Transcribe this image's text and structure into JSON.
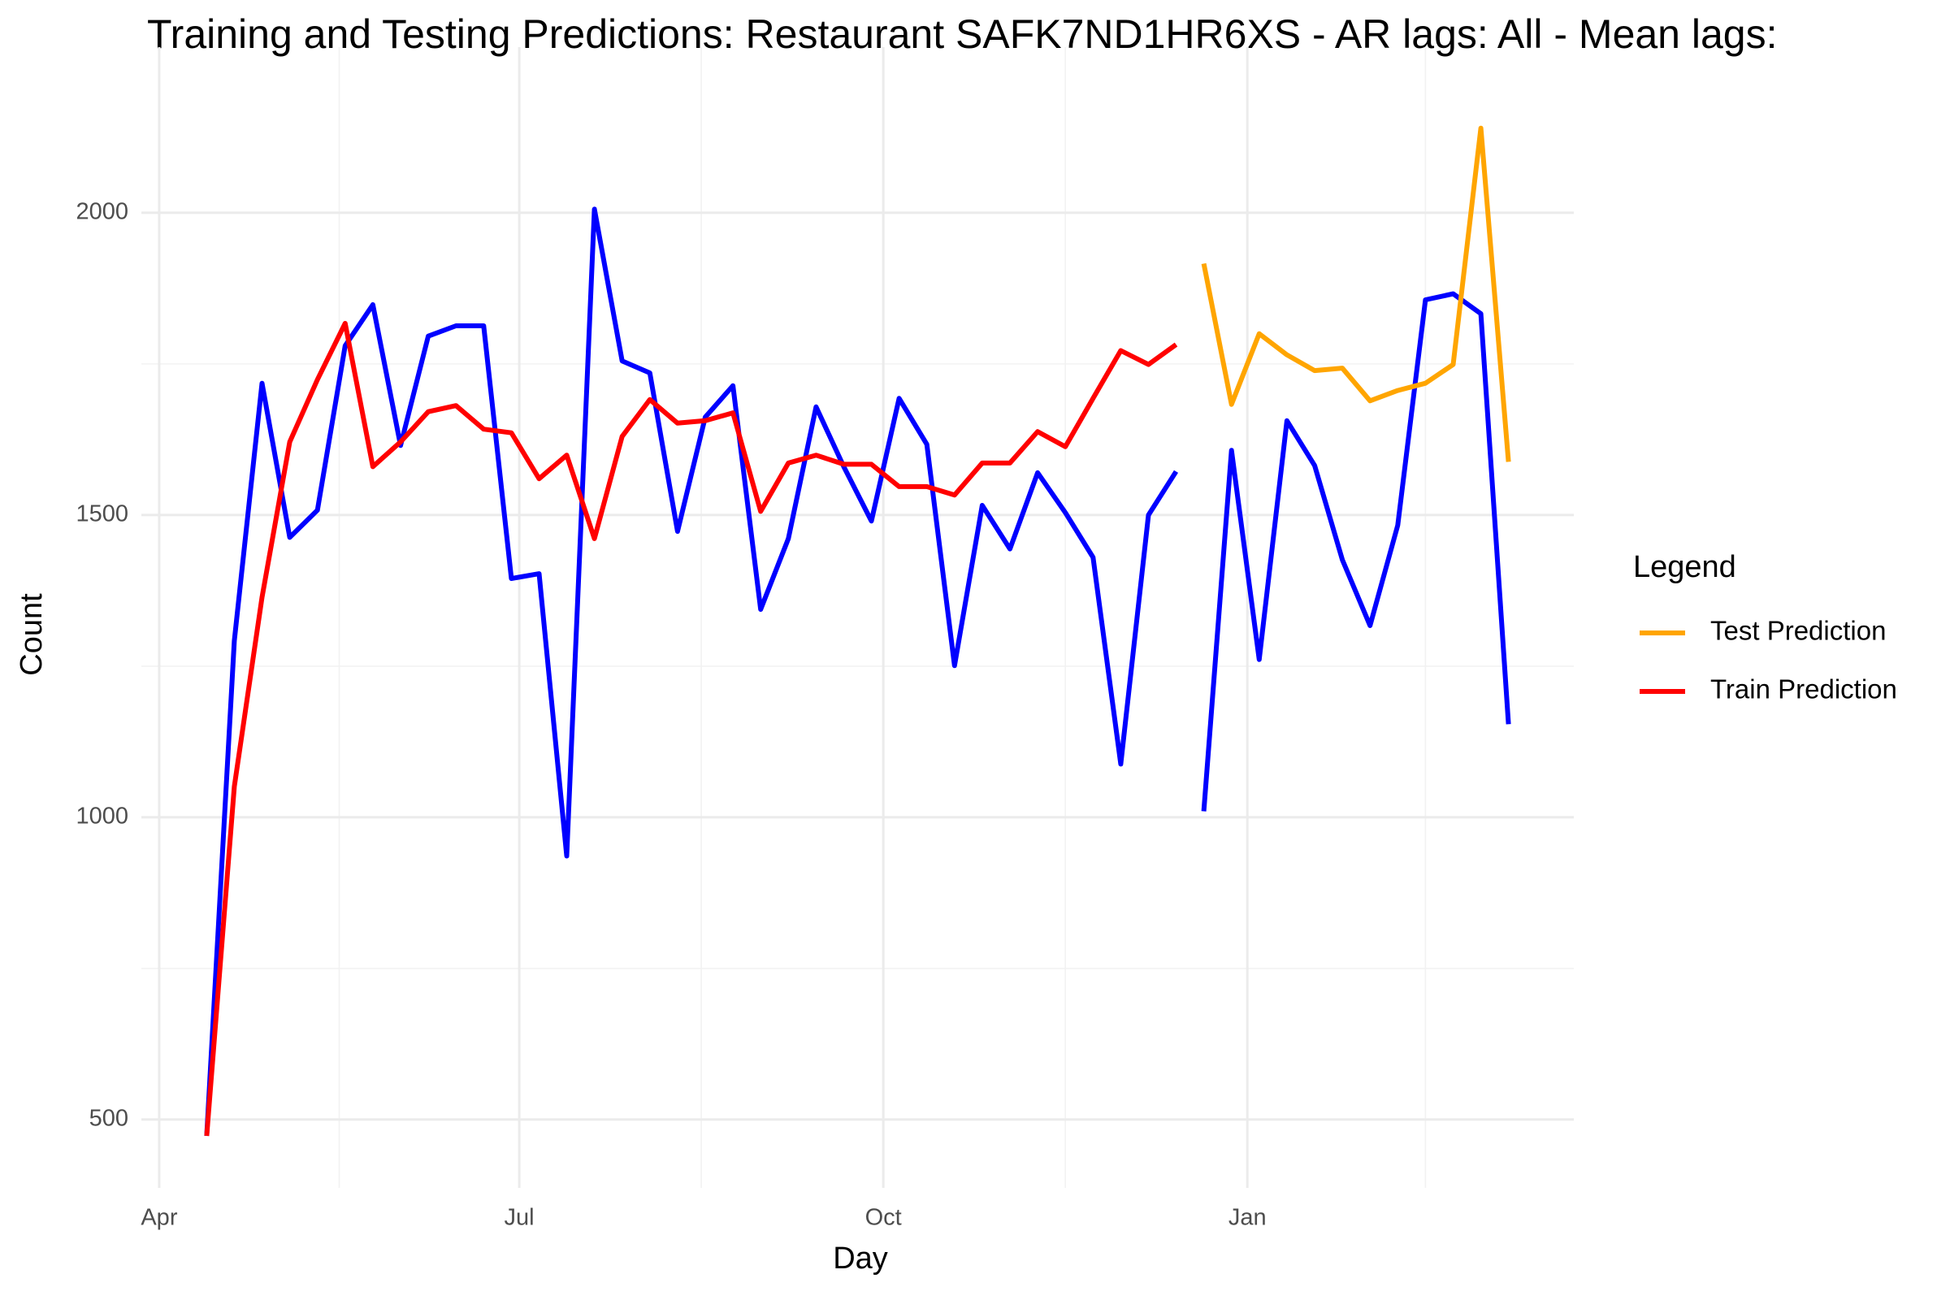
{
  "chart_data": {
    "type": "line",
    "title": "Training and Testing Predictions: Restaurant SAFK7ND1HR6XS - AR lags: All - Mean lags:",
    "xlabel": "Day",
    "ylabel": "Count",
    "legend_title": "Legend",
    "legend_position": "right",
    "grid": true,
    "x": [
      12,
      19,
      26,
      33,
      40,
      47,
      54,
      61,
      68,
      75,
      82,
      89,
      96,
      103,
      110,
      117,
      124,
      131,
      138,
      145,
      152,
      159,
      166,
      173,
      180,
      187,
      194,
      201,
      208,
      215,
      222,
      229,
      236,
      243,
      250,
      257,
      264,
      271,
      278,
      285,
      292,
      299,
      306,
      313,
      320,
      327,
      334,
      341
    ],
    "xlim": [
      -4.5,
      357.5
    ],
    "xticks": [
      {
        "value": 0,
        "label": "Apr"
      },
      {
        "value": 91,
        "label": "Jul"
      },
      {
        "value": 183,
        "label": "Oct"
      },
      {
        "value": 275,
        "label": "Jan"
      }
    ],
    "xticks_minor": [
      45.5,
      137,
      229,
      320
    ],
    "ylim": [
      387,
      2274
    ],
    "yticks": [
      500,
      1000,
      1500,
      2000
    ],
    "yticks_minor": [
      750,
      1250,
      1750
    ],
    "series": [
      {
        "color": "#0000ff",
        "values": [
          473,
          1292,
          1718,
          1463,
          1508,
          1780,
          1848,
          1615,
          1796,
          1813,
          1813,
          1395,
          1403,
          936,
          2006,
          1755,
          1735,
          1473,
          1662,
          1714,
          1344,
          1461,
          1679,
          1580,
          1490,
          1693,
          1617,
          1251,
          1516,
          1444,
          1570,
          1504,
          1430,
          1088,
          1500,
          1572,
          null,
          null,
          null,
          null,
          null,
          null,
          null,
          null,
          null,
          null,
          null,
          null
        ]
      },
      {
        "color": "#0000ff",
        "values": [
          null,
          null,
          null,
          null,
          null,
          null,
          null,
          null,
          null,
          null,
          null,
          null,
          null,
          null,
          null,
          null,
          null,
          null,
          null,
          null,
          null,
          null,
          null,
          null,
          null,
          null,
          null,
          null,
          null,
          null,
          null,
          null,
          null,
          null,
          null,
          null,
          1010,
          1607,
          1261,
          1656,
          1582,
          1426,
          1317,
          1483,
          1856,
          1866,
          1833,
          1154
        ]
      },
      {
        "name": "Test Prediction",
        "color": "#ffa500",
        "values": [
          null,
          null,
          null,
          null,
          null,
          null,
          null,
          null,
          null,
          null,
          null,
          null,
          null,
          null,
          null,
          null,
          null,
          null,
          null,
          null,
          null,
          null,
          null,
          null,
          null,
          null,
          null,
          null,
          null,
          null,
          null,
          null,
          null,
          null,
          null,
          null,
          1916,
          1683,
          1800,
          1765,
          1739,
          1743,
          1689,
          1706,
          1718,
          1749,
          2140,
          1588
        ]
      },
      {
        "name": "Train Prediction",
        "color": "#ff0000",
        "values": [
          473,
          1051,
          1364,
          1621,
          1724,
          1817,
          1580,
          1621,
          1671,
          1681,
          1642,
          1636,
          1560,
          1599,
          1461,
          1630,
          1691,
          1652,
          1656,
          1669,
          1506,
          1586,
          1599,
          1584,
          1584,
          1547,
          1547,
          1533,
          1586,
          1586,
          1638,
          1613,
          1693,
          1772,
          1749,
          1782,
          null,
          null,
          null,
          null,
          null,
          null,
          null,
          null,
          null,
          null,
          null,
          null
        ]
      }
    ]
  }
}
